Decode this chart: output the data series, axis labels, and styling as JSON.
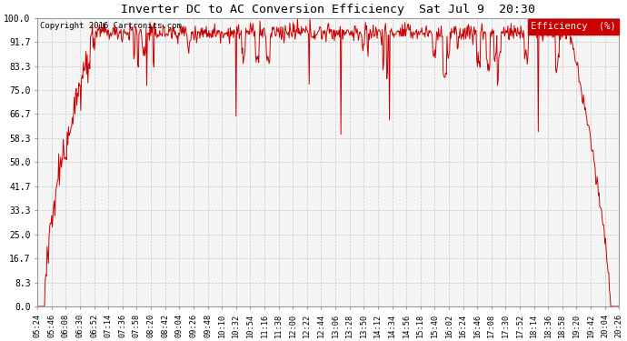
{
  "title": "Inverter DC to AC Conversion Efficiency  Sat Jul 9  20:30",
  "copyright": "Copyright 2016 Cartronics.com",
  "legend_label": "Efficiency  (%)",
  "legend_bg": "#cc0000",
  "legend_fg": "#ffffff",
  "line_color": "#cc0000",
  "bg_color": "#ffffff",
  "plot_bg_color": "#f5f5f5",
  "grid_color": "#bbbbbb",
  "yticks": [
    0.0,
    8.3,
    16.7,
    25.0,
    33.3,
    41.7,
    50.0,
    58.3,
    66.7,
    75.0,
    83.3,
    91.7,
    100.0
  ],
  "ylim": [
    0.0,
    100.0
  ],
  "xtick_labels": [
    "05:24",
    "05:46",
    "06:08",
    "06:30",
    "06:52",
    "07:14",
    "07:36",
    "07:58",
    "08:20",
    "08:42",
    "09:04",
    "09:26",
    "09:48",
    "10:10",
    "10:32",
    "10:54",
    "11:16",
    "11:38",
    "12:00",
    "12:22",
    "12:44",
    "13:06",
    "13:28",
    "13:50",
    "14:12",
    "14:34",
    "14:56",
    "15:18",
    "15:40",
    "16:02",
    "16:24",
    "16:46",
    "17:08",
    "17:30",
    "17:52",
    "18:14",
    "18:36",
    "18:58",
    "19:20",
    "19:42",
    "20:04",
    "20:26"
  ]
}
